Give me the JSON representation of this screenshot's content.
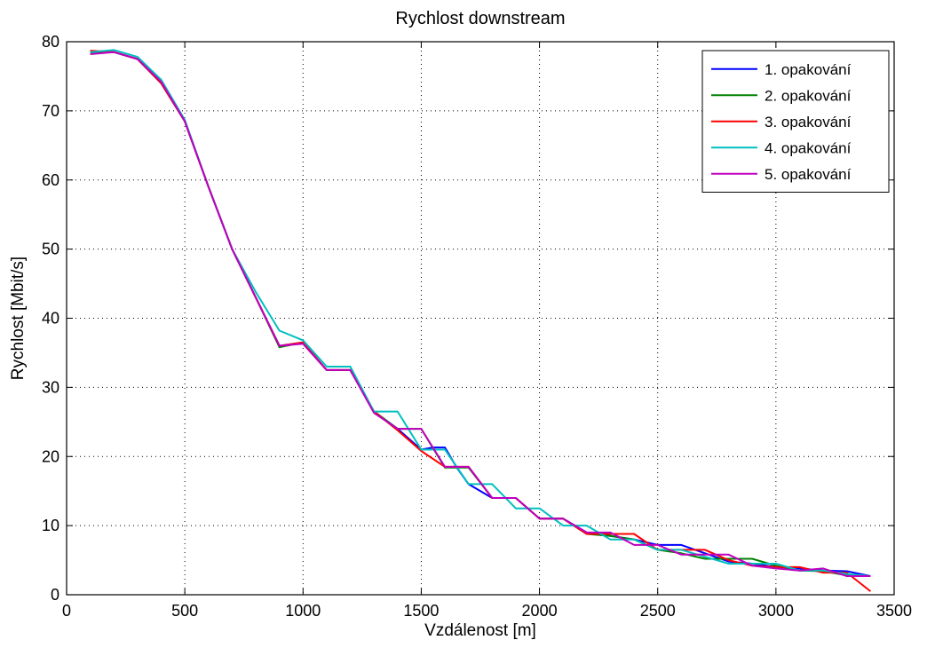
{
  "chart_data": {
    "type": "line",
    "title": "Rychlost downstream",
    "xlabel": "Vzdálenost [m]",
    "ylabel": "Rychlost [Mbit/s]",
    "xlim": [
      0,
      3500
    ],
    "ylim": [
      0,
      80
    ],
    "xticks": [
      0,
      500,
      1000,
      1500,
      2000,
      2500,
      3000,
      3500
    ],
    "yticks": [
      0,
      10,
      20,
      30,
      40,
      50,
      60,
      70,
      80
    ],
    "xtick_labels": [
      "0",
      "500",
      "1000",
      "1500",
      "2000",
      "2500",
      "3000",
      "3500"
    ],
    "ytick_labels": [
      "0",
      "10",
      "20",
      "30",
      "40",
      "50",
      "60",
      "70",
      "80"
    ],
    "grid": true,
    "legend_position": "top-right",
    "series": [
      {
        "name": "1. opakování",
        "color": "#0000ff",
        "x": [
          100,
          200,
          300,
          400,
          500,
          600,
          700,
          800,
          900,
          1000,
          1100,
          1200,
          1300,
          1400,
          1500,
          1550,
          1600,
          1650,
          1700,
          1800,
          1900,
          2000,
          2100,
          2200,
          2300,
          2400,
          2500,
          2600,
          2700,
          2800,
          2900,
          3000,
          3100,
          3200,
          3300,
          3400
        ],
        "y": [
          78.5,
          78.5,
          77.5,
          74.0,
          68.5,
          59.0,
          50.0,
          43.0,
          36.0,
          36.5,
          32.5,
          32.5,
          26.5,
          24.0,
          21.0,
          21.3,
          21.3,
          18.4,
          16.0,
          14.0,
          14.0,
          11.0,
          11.0,
          9.0,
          8.5,
          8.0,
          7.2,
          7.2,
          6.0,
          4.8,
          4.5,
          4.0,
          3.8,
          3.5,
          3.4,
          2.7
        ]
      },
      {
        "name": "2. opakování",
        "color": "#008000",
        "x": [
          100,
          200,
          300,
          400,
          500,
          600,
          700,
          800,
          900,
          1000,
          1100,
          1200,
          1300,
          1400,
          1500,
          1600,
          1700,
          1800,
          1900,
          2000,
          2100,
          2200,
          2300,
          2400,
          2500,
          2600,
          2700,
          2800,
          2900,
          3000,
          3100,
          3200,
          3300,
          3400
        ],
        "y": [
          78.5,
          78.5,
          77.5,
          74.0,
          68.5,
          59.0,
          50.0,
          43.0,
          35.8,
          36.5,
          32.5,
          32.5,
          26.5,
          24.0,
          24.0,
          18.4,
          18.4,
          14.0,
          14.0,
          11.0,
          11.0,
          8.8,
          8.5,
          8.0,
          6.5,
          6.0,
          5.2,
          5.2,
          5.2,
          4.2,
          3.5,
          3.4,
          2.8,
          2.7
        ]
      },
      {
        "name": "3. opakování",
        "color": "#ff0000",
        "x": [
          100,
          200,
          300,
          400,
          500,
          600,
          700,
          800,
          900,
          1000,
          1100,
          1200,
          1300,
          1400,
          1500,
          1600,
          1700,
          1800,
          1900,
          2000,
          2100,
          2200,
          2300,
          2400,
          2500,
          2600,
          2700,
          2800,
          2900,
          3000,
          3100,
          3200,
          3300,
          3400
        ],
        "y": [
          78.7,
          78.5,
          77.5,
          74.0,
          68.5,
          59.0,
          50.0,
          43.0,
          36.0,
          36.5,
          32.5,
          32.5,
          26.5,
          23.8,
          20.8,
          18.5,
          18.5,
          14.0,
          14.0,
          11.0,
          11.0,
          8.8,
          8.8,
          8.8,
          6.5,
          6.5,
          6.5,
          5.0,
          4.2,
          4.0,
          4.0,
          3.2,
          3.2,
          0.5
        ]
      },
      {
        "name": "4. opakování",
        "color": "#00bfbf",
        "x": [
          100,
          200,
          300,
          400,
          500,
          600,
          700,
          800,
          900,
          1000,
          1100,
          1200,
          1300,
          1400,
          1500,
          1600,
          1700,
          1800,
          1900,
          2000,
          2100,
          2200,
          2300,
          2400,
          2500,
          2600,
          2700,
          2800,
          2900,
          3000,
          3100,
          3200,
          3300,
          3400
        ],
        "y": [
          78.5,
          78.8,
          77.8,
          74.5,
          68.7,
          59.0,
          50.0,
          43.8,
          38.2,
          36.8,
          33.0,
          33.0,
          26.5,
          26.5,
          21.0,
          21.0,
          16.0,
          16.0,
          12.5,
          12.5,
          10.0,
          10.0,
          8.0,
          8.0,
          6.5,
          6.5,
          5.5,
          4.5,
          4.5,
          4.5,
          3.5,
          3.5,
          3.0,
          2.7
        ]
      },
      {
        "name": "5. opakování",
        "color": "#bf00bf",
        "x": [
          100,
          200,
          300,
          400,
          500,
          600,
          700,
          800,
          900,
          1000,
          1100,
          1200,
          1300,
          1400,
          1500,
          1600,
          1700,
          1800,
          1900,
          2000,
          2100,
          2200,
          2300,
          2400,
          2500,
          2600,
          2700,
          2800,
          2900,
          3000,
          3100,
          3200,
          3300,
          3400
        ],
        "y": [
          78.2,
          78.5,
          77.5,
          74.2,
          68.5,
          59.0,
          50.0,
          43.0,
          36.0,
          36.3,
          32.5,
          32.5,
          26.3,
          24.0,
          24.0,
          18.5,
          18.5,
          14.0,
          14.0,
          11.0,
          11.0,
          9.0,
          9.0,
          7.2,
          7.2,
          5.8,
          5.8,
          5.8,
          4.2,
          3.8,
          3.5,
          3.8,
          2.7,
          2.7
        ]
      }
    ]
  }
}
